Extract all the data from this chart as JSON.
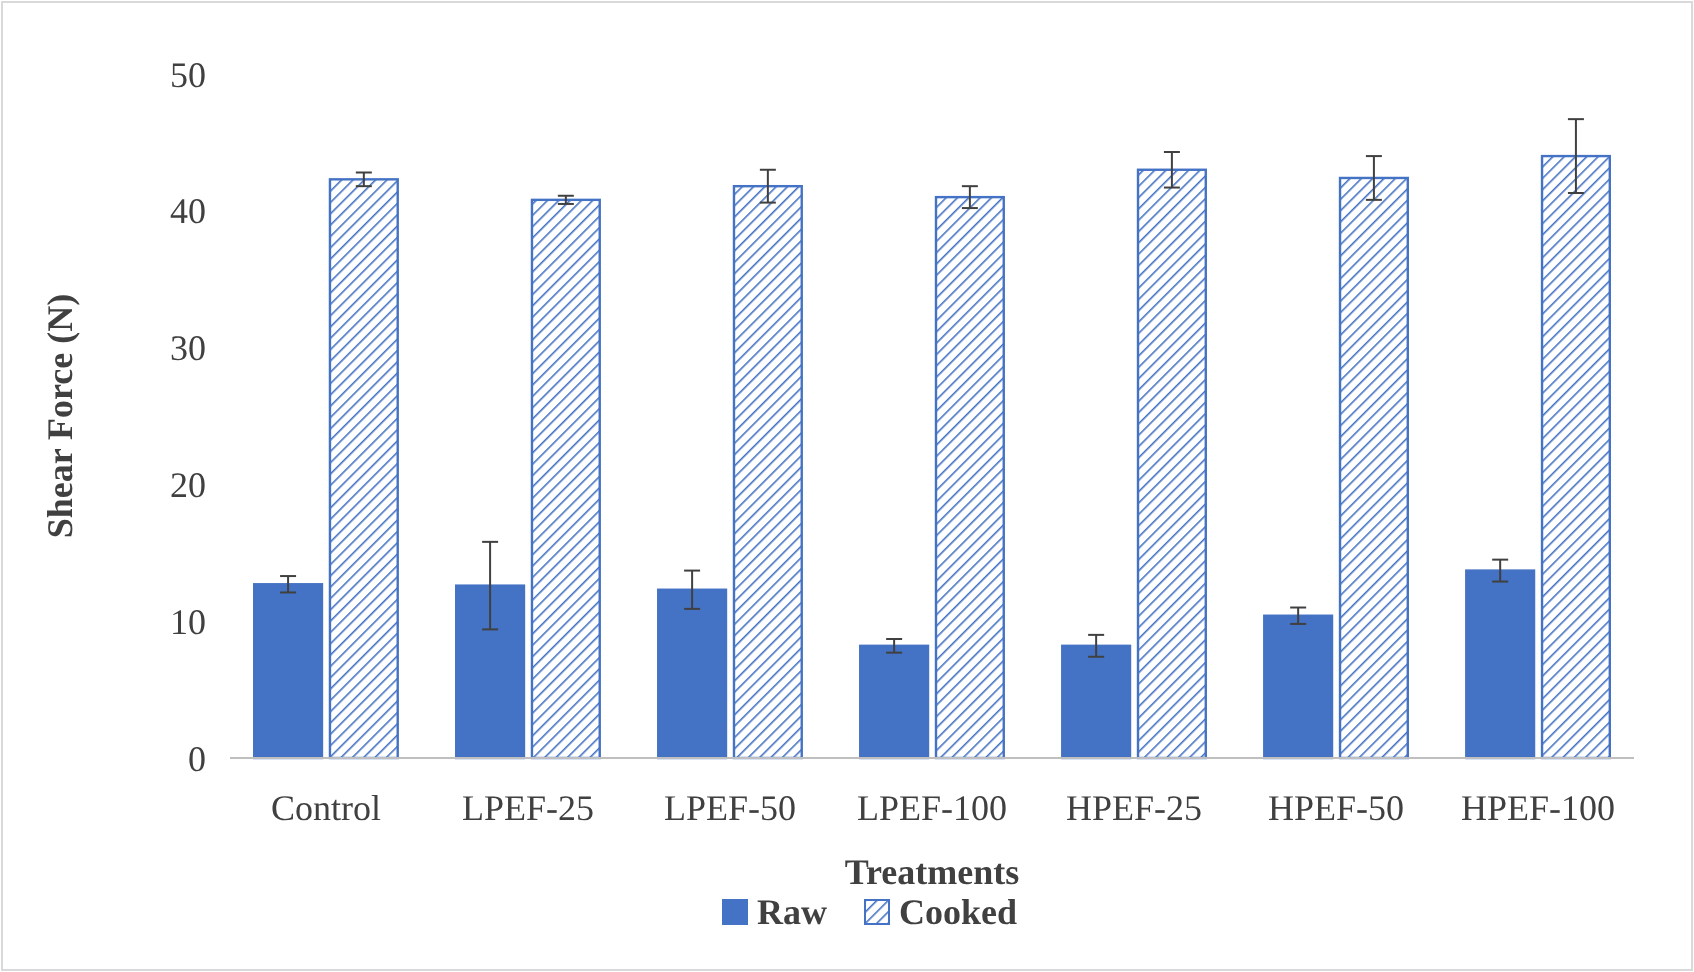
{
  "chart_data": {
    "type": "bar",
    "xlabel": "Treatments",
    "ylabel": "Shear Force (N)",
    "categories": [
      "Control",
      "LPEF-25",
      "LPEF-50",
      "LPEF-100",
      "HPEF-25",
      "HPEF-50",
      "HPEF-100"
    ],
    "series": [
      {
        "name": "Raw",
        "color": "#4472c4",
        "values": [
          12.7,
          12.6,
          12.3,
          8.2,
          8.2,
          10.4,
          13.7
        ],
        "errors": [
          0.6,
          3.2,
          1.4,
          0.5,
          0.8,
          0.6,
          0.8
        ]
      },
      {
        "name": "Cooked",
        "color": "#4472c4",
        "values": [
          42.3,
          40.8,
          41.8,
          41.0,
          43.0,
          42.4,
          44.0
        ],
        "errors": [
          0.5,
          0.3,
          1.2,
          0.8,
          1.3,
          1.6,
          2.7
        ]
      }
    ],
    "ylim": [
      0,
      50
    ],
    "yticks": [
      0,
      10,
      20,
      30,
      40,
      50
    ],
    "grid": false,
    "legend": "bottom"
  }
}
